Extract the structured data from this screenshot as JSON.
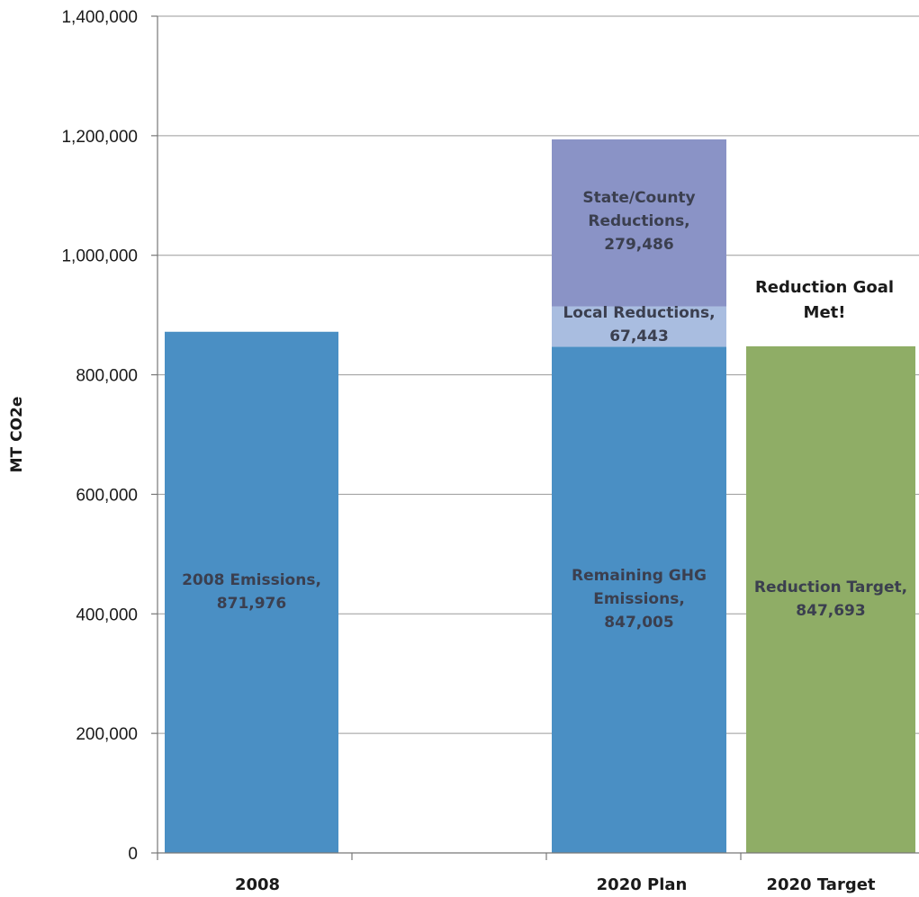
{
  "chart_data": {
    "type": "bar",
    "stacked": true,
    "ylabel": "MT CO2e",
    "xlabel": "",
    "ylim": [
      0,
      1400000
    ],
    "yticks": [
      0,
      200000,
      400000,
      600000,
      800000,
      1000000,
      1200000,
      1400000
    ],
    "ytick_labels": [
      "0",
      "200,000",
      "400,000",
      "600,000",
      "800,000",
      "1,000,000",
      "1,200,000",
      "1,400,000"
    ],
    "grid": true,
    "legend": "none",
    "categories": [
      "2008",
      "2020 Plan",
      "2020 Target"
    ],
    "bars": [
      {
        "category": "2008",
        "segments": [
          {
            "value": 871976,
            "label": [
              "2008 Emissions,",
              "871,976"
            ],
            "color": "#4a8fc4"
          }
        ]
      },
      {
        "category": "2020 Plan",
        "segments": [
          {
            "value": 847005,
            "label": [
              "Remaining GHG",
              "Emissions,",
              "847,005"
            ],
            "color": "#4a8fc4"
          },
          {
            "value": 67443,
            "label": [
              "Local Reductions,",
              "67,443"
            ],
            "color": "#a9bde0"
          },
          {
            "value": 279486,
            "label": [
              "State/County",
              "Reductions,",
              "279,486"
            ],
            "color": "#8a93c6"
          }
        ]
      },
      {
        "category": "2020 Target",
        "segments": [
          {
            "value": 847693,
            "label": [
              "Reduction Target,",
              "847,693"
            ],
            "color": "#8fad66"
          }
        ]
      }
    ],
    "annotation": {
      "text": [
        "Reduction Goal",
        "Met!"
      ],
      "category": "2020 Target"
    }
  }
}
